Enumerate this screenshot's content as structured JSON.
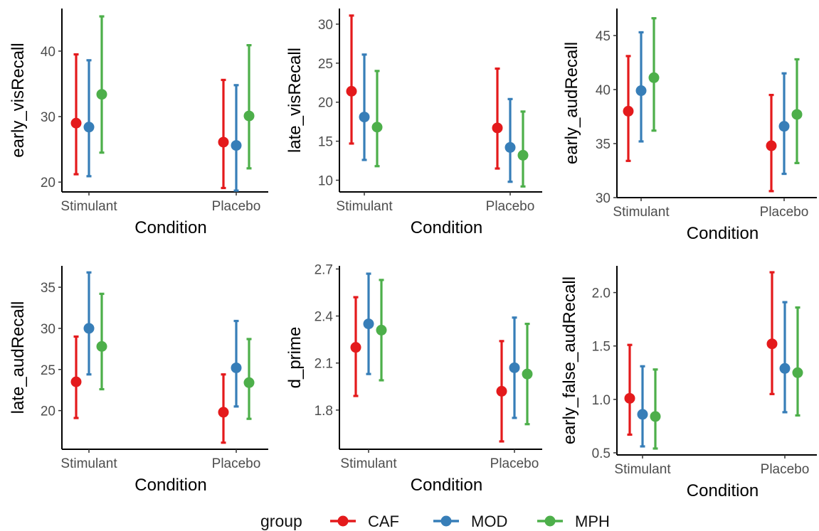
{
  "legend": {
    "title": "group",
    "items": [
      {
        "label": "CAF",
        "color": "#E41A1C"
      },
      {
        "label": "MOD",
        "color": "#377EB8"
      },
      {
        "label": "MPH",
        "color": "#4DAF4A"
      }
    ],
    "placement": "bottom"
  },
  "chart_data": [
    {
      "type": "scatter",
      "ylabel": "early_visRecall",
      "xlabel": "Condition",
      "categories": [
        "Stimulant",
        "Placebo"
      ],
      "yticks": [
        20,
        30,
        40
      ],
      "ylim": [
        18.5,
        46.5
      ],
      "grid": false,
      "series": [
        {
          "name": "CAF",
          "values": [
            29.0,
            26.1
          ],
          "lower": [
            21.2,
            19.1
          ],
          "upper": [
            39.5,
            35.6
          ]
        },
        {
          "name": "MOD",
          "values": [
            28.4,
            25.6
          ],
          "lower": [
            20.9,
            18.7
          ],
          "upper": [
            38.6,
            34.8
          ]
        },
        {
          "name": "MPH",
          "values": [
            33.4,
            30.1
          ],
          "lower": [
            24.5,
            22.1
          ],
          "upper": [
            45.3,
            40.9
          ]
        }
      ]
    },
    {
      "type": "scatter",
      "ylabel": "late_visRecall",
      "xlabel": "Condition",
      "categories": [
        "Stimulant",
        "Placebo"
      ],
      "yticks": [
        10,
        15,
        20,
        25,
        30
      ],
      "ylim": [
        8.5,
        32.0
      ],
      "grid": false,
      "series": [
        {
          "name": "CAF",
          "values": [
            21.4,
            16.7
          ],
          "lower": [
            14.7,
            11.5
          ],
          "upper": [
            31.1,
            24.3
          ]
        },
        {
          "name": "MOD",
          "values": [
            18.1,
            14.2
          ],
          "lower": [
            12.6,
            9.8
          ],
          "upper": [
            26.1,
            20.4
          ]
        },
        {
          "name": "MPH",
          "values": [
            16.8,
            13.2
          ],
          "lower": [
            11.8,
            9.2
          ],
          "upper": [
            24.0,
            18.8
          ]
        }
      ]
    },
    {
      "type": "scatter",
      "ylabel": "early_audRecall",
      "xlabel": "Condition",
      "categories": [
        "Stimulant",
        "Placebo"
      ],
      "yticks": [
        30,
        35,
        40,
        45
      ],
      "ylim": [
        30.0,
        47.5
      ],
      "grid": false,
      "series": [
        {
          "name": "CAF",
          "values": [
            38.0,
            34.8
          ],
          "lower": [
            33.4,
            30.6
          ],
          "upper": [
            43.1,
            39.5
          ]
        },
        {
          "name": "MOD",
          "values": [
            39.9,
            36.6
          ],
          "lower": [
            35.2,
            32.2
          ],
          "upper": [
            45.3,
            41.5
          ]
        },
        {
          "name": "MPH",
          "values": [
            41.1,
            37.7
          ],
          "lower": [
            36.2,
            33.2
          ],
          "upper": [
            46.6,
            42.8
          ]
        }
      ]
    },
    {
      "type": "scatter",
      "ylabel": "late_audRecall",
      "xlabel": "Condition",
      "categories": [
        "Stimulant",
        "Placebo"
      ],
      "yticks": [
        20,
        25,
        30,
        35
      ],
      "ylim": [
        15.3,
        37.6
      ],
      "grid": false,
      "series": [
        {
          "name": "CAF",
          "values": [
            23.5,
            19.8
          ],
          "lower": [
            19.1,
            16.1
          ],
          "upper": [
            29.0,
            24.4
          ]
        },
        {
          "name": "MOD",
          "values": [
            30.0,
            25.2
          ],
          "lower": [
            24.4,
            20.5
          ],
          "upper": [
            36.8,
            30.9
          ]
        },
        {
          "name": "MPH",
          "values": [
            27.8,
            23.4
          ],
          "lower": [
            22.6,
            19.0
          ],
          "upper": [
            34.2,
            28.7
          ]
        }
      ]
    },
    {
      "type": "scatter",
      "ylabel": "d_prime",
      "xlabel": "Condition",
      "categories": [
        "Stimulant",
        "Placebo"
      ],
      "yticks": [
        1.8,
        2.1,
        2.4,
        2.7
      ],
      "ylim": [
        1.55,
        2.72
      ],
      "grid": false,
      "series": [
        {
          "name": "CAF",
          "values": [
            2.2,
            1.92
          ],
          "lower": [
            1.89,
            1.6
          ],
          "upper": [
            2.52,
            2.24
          ]
        },
        {
          "name": "MOD",
          "values": [
            2.35,
            2.07
          ],
          "lower": [
            2.03,
            1.75
          ],
          "upper": [
            2.67,
            2.39
          ]
        },
        {
          "name": "MPH",
          "values": [
            2.31,
            2.03
          ],
          "lower": [
            1.99,
            1.71
          ],
          "upper": [
            2.63,
            2.35
          ]
        }
      ]
    },
    {
      "type": "scatter",
      "ylabel": "early_false_audRecall",
      "xlabel": "Condition",
      "categories": [
        "Stimulant",
        "Placebo"
      ],
      "yticks": [
        "0.5",
        "1.0",
        "1.5",
        "2.0"
      ],
      "ylim": [
        0.48,
        2.25
      ],
      "grid": false,
      "series": [
        {
          "name": "CAF",
          "values": [
            1.01,
            1.52
          ],
          "lower": [
            0.67,
            1.05
          ],
          "upper": [
            1.51,
            2.19
          ]
        },
        {
          "name": "MOD",
          "values": [
            0.86,
            1.29
          ],
          "lower": [
            0.56,
            0.88
          ],
          "upper": [
            1.31,
            1.91
          ]
        },
        {
          "name": "MPH",
          "values": [
            0.84,
            1.25
          ],
          "lower": [
            0.54,
            0.85
          ],
          "upper": [
            1.28,
            1.86
          ]
        }
      ]
    }
  ]
}
